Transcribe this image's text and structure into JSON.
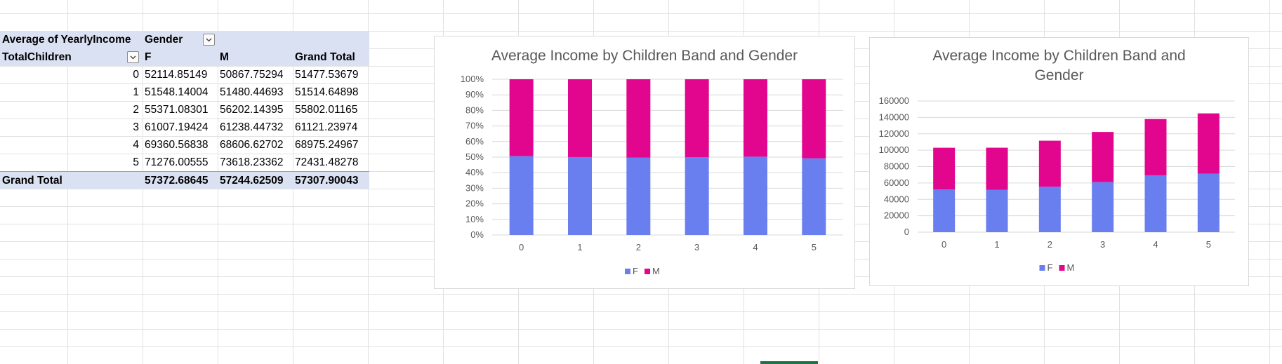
{
  "pivot": {
    "value_field": "Average of YearlyIncome",
    "column_field": "Gender",
    "row_field": "TotalChildren",
    "headers": [
      "F",
      "M",
      "Grand Total"
    ],
    "rows": [
      {
        "label": "0",
        "f": "52114.85149",
        "m": "50867.75294",
        "total": "51477.53679"
      },
      {
        "label": "1",
        "f": "51548.14004",
        "m": "51480.44693",
        "total": "51514.64898"
      },
      {
        "label": "2",
        "f": "55371.08301",
        "m": "56202.14395",
        "total": "55802.01165"
      },
      {
        "label": "3",
        "f": "61007.19424",
        "m": "61238.44732",
        "total": "61121.23974"
      },
      {
        "label": "4",
        "f": "69360.56838",
        "m": "68606.62702",
        "total": "68975.24967"
      },
      {
        "label": "5",
        "f": "71276.00555",
        "m": "73618.23362",
        "total": "72431.48278"
      }
    ],
    "grand_total": {
      "label": "Grand Total",
      "f": "57372.68645",
      "m": "57244.62509",
      "total": "57307.90043"
    }
  },
  "colors": {
    "f": "#6a7fef",
    "m": "#e2058d",
    "grid": "#d9d9d9",
    "axis_text": "#595959"
  },
  "chart_data": [
    {
      "type": "bar",
      "stacked": "percent",
      "title": "Average Income by Children Band and Gender",
      "categories": [
        "0",
        "1",
        "2",
        "3",
        "4",
        "5"
      ],
      "series": [
        {
          "name": "F",
          "values": [
            52114.85149,
            51548.14004,
            55371.08301,
            61007.19424,
            69360.56838,
            71276.00555
          ]
        },
        {
          "name": "M",
          "values": [
            50867.75294,
            51480.44693,
            56202.14395,
            61238.44732,
            68606.62702,
            73618.23362
          ]
        }
      ],
      "y_ticks": [
        "0%",
        "10%",
        "20%",
        "30%",
        "40%",
        "50%",
        "60%",
        "70%",
        "80%",
        "90%",
        "100%"
      ],
      "ylim": [
        0,
        1
      ],
      "grid": true,
      "legend": "bottom"
    },
    {
      "type": "bar",
      "stacked": "stacked",
      "title": "Average Income by Children Band and Gender",
      "title_lines": [
        "Average Income by Children Band and",
        "Gender"
      ],
      "categories": [
        "0",
        "1",
        "2",
        "3",
        "4",
        "5"
      ],
      "series": [
        {
          "name": "F",
          "values": [
            52114.85149,
            51548.14004,
            55371.08301,
            61007.19424,
            69360.56838,
            71276.00555
          ]
        },
        {
          "name": "M",
          "values": [
            50867.75294,
            51480.44693,
            56202.14395,
            61238.44732,
            68606.62702,
            73618.23362
          ]
        }
      ],
      "y_ticks": [
        "0",
        "20000",
        "40000",
        "60000",
        "80000",
        "100000",
        "120000",
        "140000",
        "160000"
      ],
      "ylim": [
        0,
        160000
      ],
      "grid": true,
      "legend": "bottom"
    }
  ]
}
